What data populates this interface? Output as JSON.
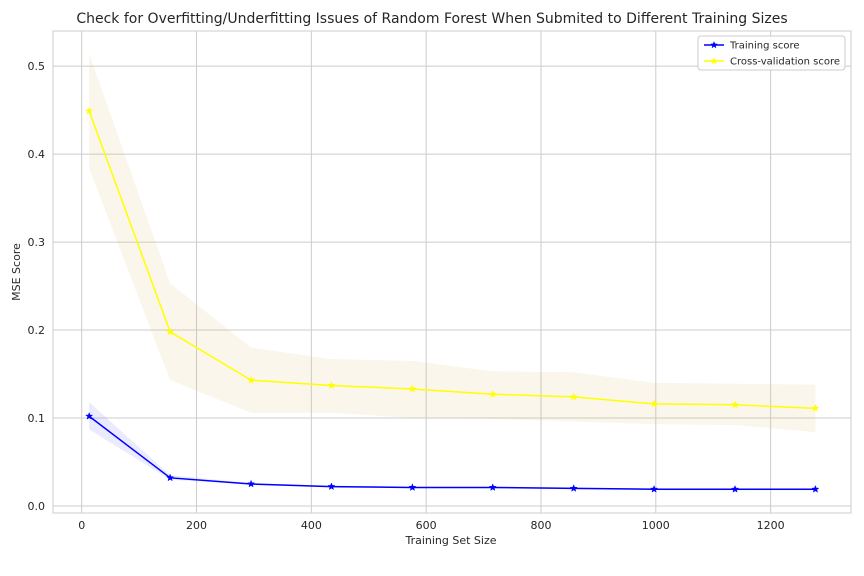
{
  "chart_data": {
    "type": "line",
    "title": "Check for Overfitting/Underfitting Issues of Random Forest When Submited to Different Training Sizes",
    "xlabel": "Training Set Size",
    "ylabel": "MSE Score",
    "xlim": [
      -50,
      1340
    ],
    "ylim": [
      -0.008,
      0.54
    ],
    "xticks": [
      0,
      200,
      400,
      600,
      800,
      1000,
      1200
    ],
    "yticks": [
      0.0,
      0.1,
      0.2,
      0.3,
      0.4,
      0.5
    ],
    "grid": true,
    "legend_position": "top-right",
    "x": [
      13,
      154,
      295,
      435,
      576,
      716,
      857,
      997,
      1138,
      1278
    ],
    "series": [
      {
        "name": "Training score",
        "color": "#0000ff",
        "marker": "star",
        "values": [
          0.102,
          0.032,
          0.025,
          0.022,
          0.021,
          0.021,
          0.02,
          0.019,
          0.019,
          0.019
        ],
        "band_lower": [
          0.087,
          0.03,
          0.024,
          0.021,
          0.02,
          0.02,
          0.019,
          0.018,
          0.018,
          0.018
        ],
        "band_upper": [
          0.118,
          0.035,
          0.026,
          0.023,
          0.022,
          0.022,
          0.021,
          0.02,
          0.02,
          0.02
        ]
      },
      {
        "name": "Cross-validation score",
        "color": "#ffff00",
        "marker": "star",
        "values": [
          0.449,
          0.198,
          0.143,
          0.137,
          0.133,
          0.127,
          0.124,
          0.116,
          0.115,
          0.111
        ],
        "band_lower": [
          0.384,
          0.143,
          0.106,
          0.106,
          0.1,
          0.099,
          0.096,
          0.093,
          0.092,
          0.084
        ],
        "band_upper": [
          0.514,
          0.253,
          0.18,
          0.167,
          0.165,
          0.153,
          0.152,
          0.14,
          0.139,
          0.138
        ]
      }
    ]
  }
}
